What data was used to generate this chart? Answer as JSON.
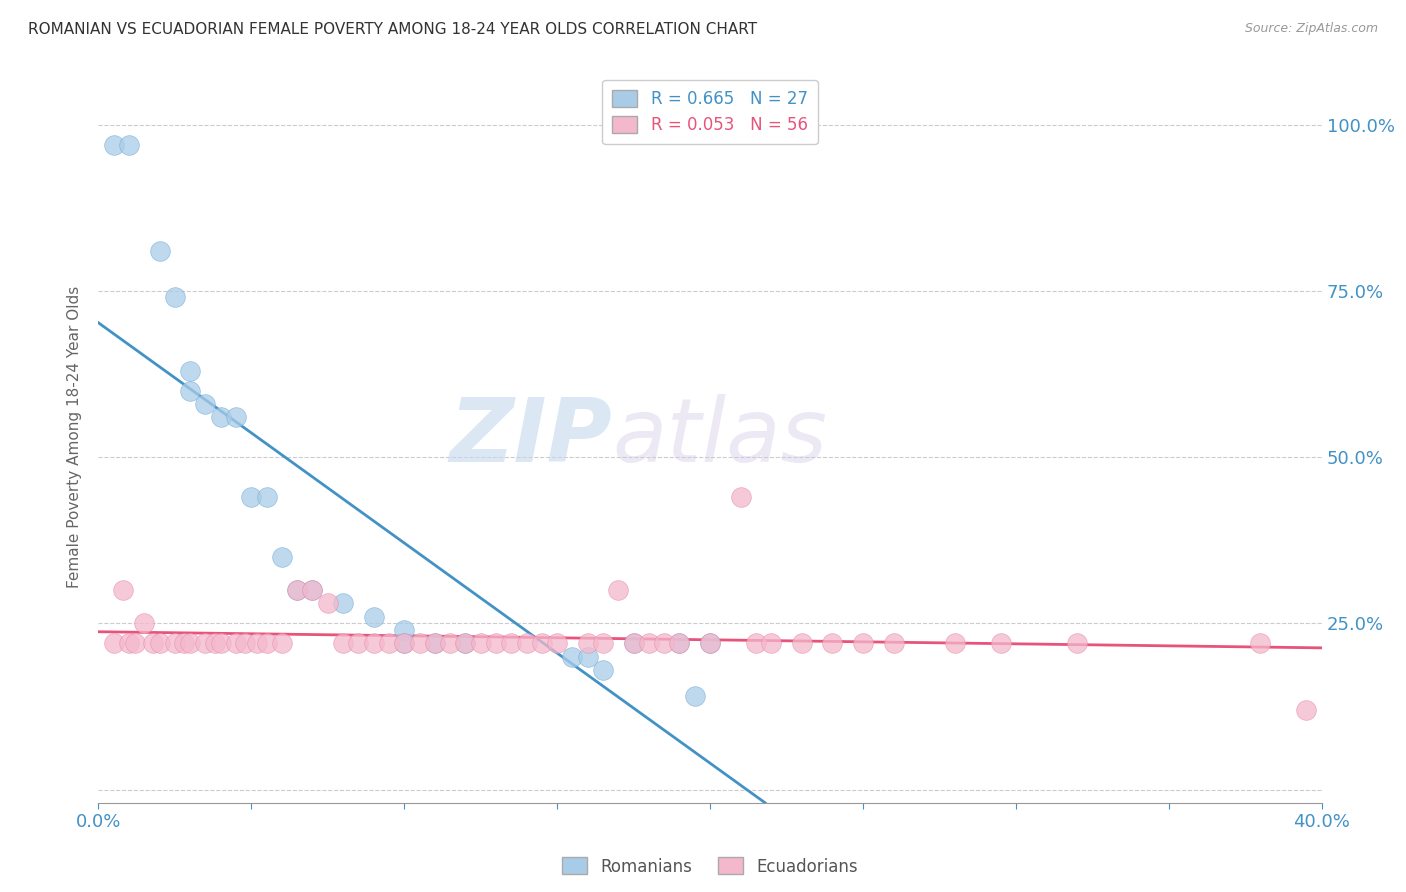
{
  "title": "ROMANIAN VS ECUADORIAN FEMALE POVERTY AMONG 18-24 YEAR OLDS CORRELATION CHART",
  "source": "Source: ZipAtlas.com",
  "xlabel": "",
  "ylabel": "Female Poverty Among 18-24 Year Olds",
  "xlim": [
    0.0,
    0.4
  ],
  "ylim": [
    -0.02,
    1.08
  ],
  "ytick_labels": [
    "",
    "25.0%",
    "50.0%",
    "75.0%",
    "100.0%"
  ],
  "ytick_values": [
    0.0,
    0.25,
    0.5,
    0.75,
    1.0
  ],
  "xtick_values": [
    0.0,
    0.05,
    0.1,
    0.15,
    0.2,
    0.25,
    0.3,
    0.35,
    0.4
  ],
  "romanian_color": "#a8cce8",
  "ecuadorian_color": "#f4b8cc",
  "line_romanian_color": "#4292c6",
  "line_ecuadorian_color": "#e8537a",
  "R_romanian": 0.665,
  "N_romanian": 27,
  "R_ecuadorian": 0.053,
  "N_ecuadorian": 56,
  "watermark_zip": "ZIP",
  "watermark_atlas": "atlas",
  "background_color": "#ffffff",
  "grid_color": "#cccccc",
  "axis_label_color": "#4292c6",
  "romanian_x": [
    0.005,
    0.01,
    0.02,
    0.025,
    0.03,
    0.03,
    0.035,
    0.04,
    0.045,
    0.05,
    0.055,
    0.06,
    0.065,
    0.07,
    0.08,
    0.09,
    0.1,
    0.1,
    0.11,
    0.12,
    0.155,
    0.16,
    0.165,
    0.175,
    0.19,
    0.195,
    0.2
  ],
  "romanian_y": [
    0.97,
    0.97,
    0.81,
    0.74,
    0.63,
    0.6,
    0.58,
    0.56,
    0.56,
    0.44,
    0.44,
    0.35,
    0.3,
    0.3,
    0.28,
    0.26,
    0.24,
    0.22,
    0.22,
    0.22,
    0.2,
    0.2,
    0.18,
    0.22,
    0.22,
    0.14,
    0.22
  ],
  "ecuadorian_x": [
    0.005,
    0.008,
    0.01,
    0.012,
    0.015,
    0.018,
    0.02,
    0.025,
    0.028,
    0.03,
    0.035,
    0.038,
    0.04,
    0.045,
    0.048,
    0.052,
    0.055,
    0.06,
    0.065,
    0.07,
    0.075,
    0.08,
    0.085,
    0.09,
    0.095,
    0.1,
    0.105,
    0.11,
    0.115,
    0.12,
    0.125,
    0.13,
    0.135,
    0.14,
    0.145,
    0.15,
    0.16,
    0.165,
    0.17,
    0.175,
    0.18,
    0.185,
    0.19,
    0.2,
    0.21,
    0.215,
    0.22,
    0.23,
    0.24,
    0.25,
    0.26,
    0.28,
    0.295,
    0.32,
    0.38,
    0.395
  ],
  "ecuadorian_y": [
    0.22,
    0.3,
    0.22,
    0.22,
    0.25,
    0.22,
    0.22,
    0.22,
    0.22,
    0.22,
    0.22,
    0.22,
    0.22,
    0.22,
    0.22,
    0.22,
    0.22,
    0.22,
    0.3,
    0.3,
    0.28,
    0.22,
    0.22,
    0.22,
    0.22,
    0.22,
    0.22,
    0.22,
    0.22,
    0.22,
    0.22,
    0.22,
    0.22,
    0.22,
    0.22,
    0.22,
    0.22,
    0.22,
    0.3,
    0.22,
    0.22,
    0.22,
    0.22,
    0.22,
    0.44,
    0.22,
    0.22,
    0.22,
    0.22,
    0.22,
    0.22,
    0.22,
    0.22,
    0.22,
    0.22,
    0.12
  ]
}
